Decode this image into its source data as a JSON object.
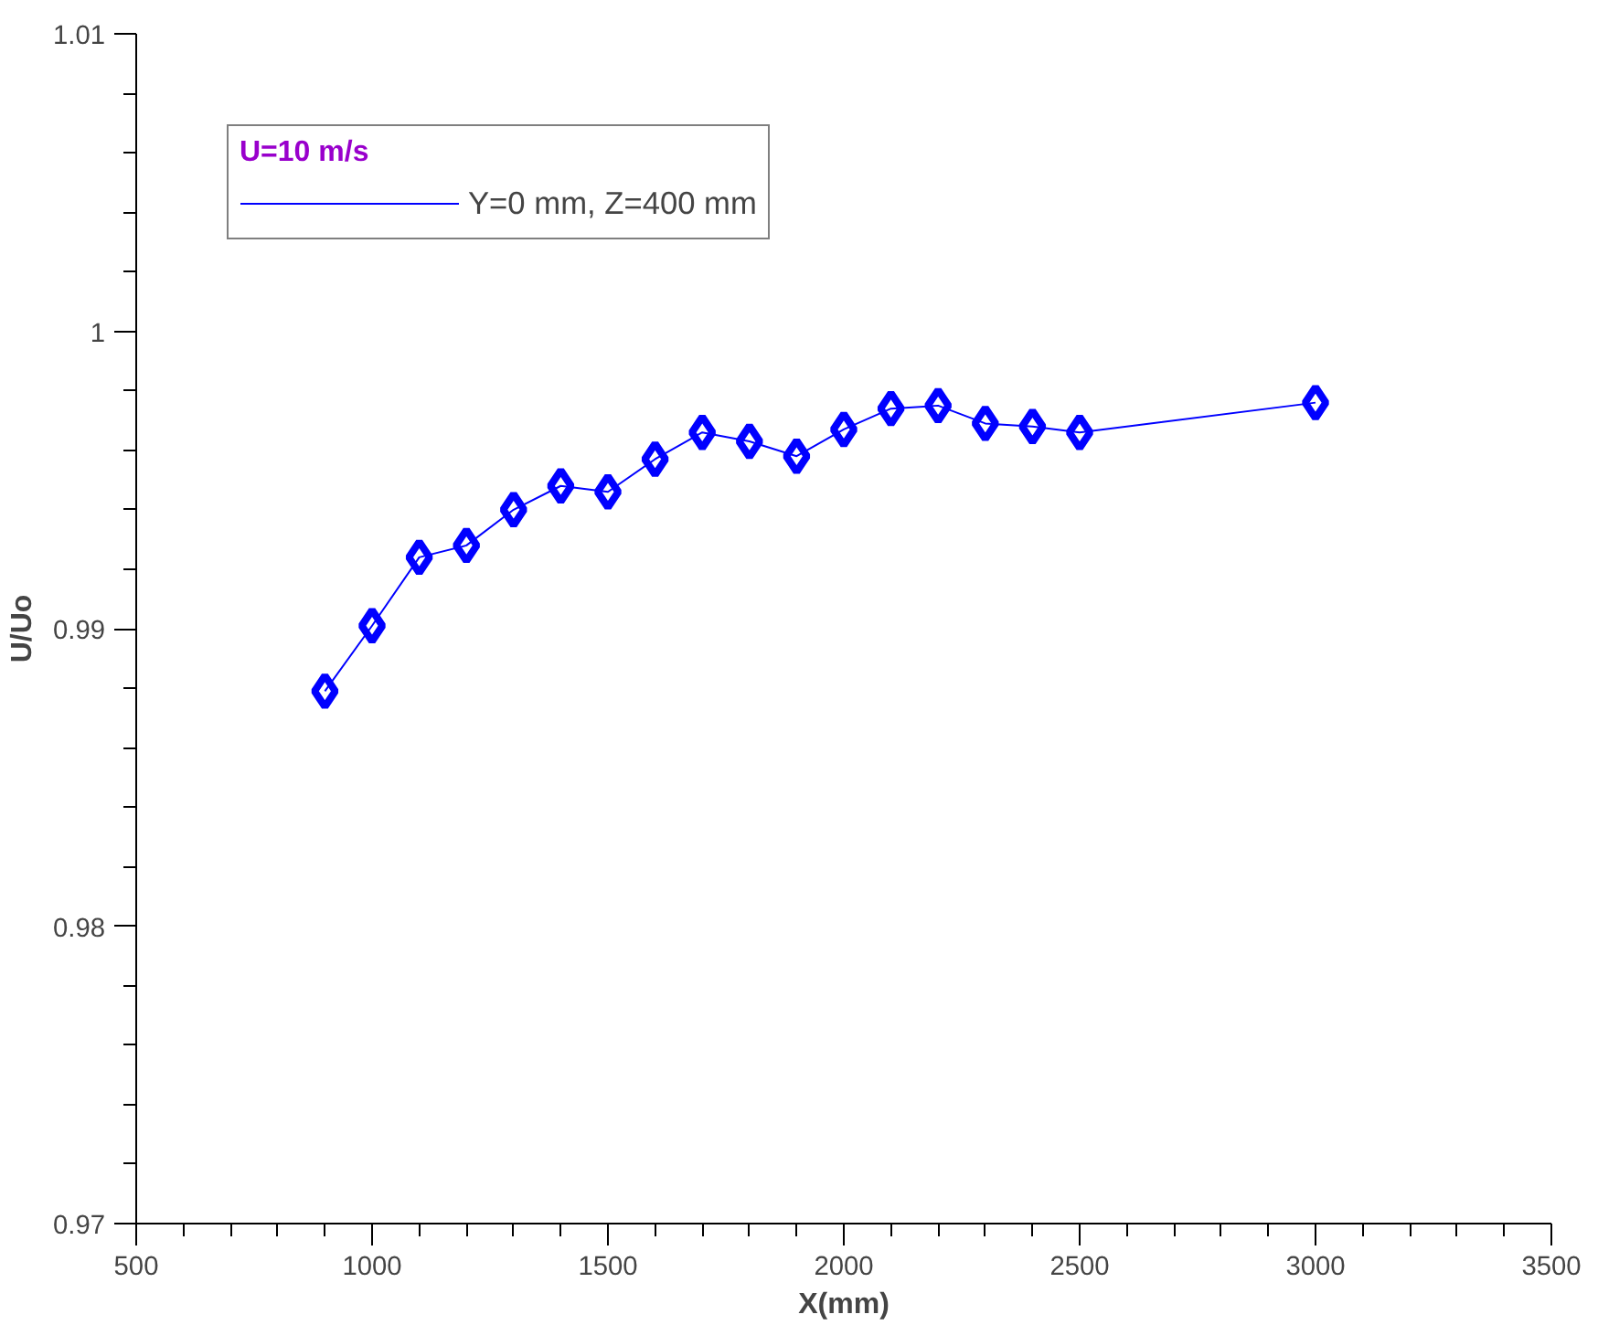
{
  "chart_data": {
    "type": "line",
    "xlabel": "X(mm)",
    "ylabel": "U/Uo",
    "legend_title": "U=10 m/s",
    "x": [
      900,
      1000,
      1100,
      1200,
      1300,
      1400,
      1500,
      1600,
      1700,
      1800,
      1900,
      2000,
      2100,
      2200,
      2300,
      2400,
      2500,
      3000
    ],
    "series": [
      {
        "name": "Y=0 mm, Z=400 mm",
        "color": "#0000ff",
        "values": [
          0.9879,
          0.9901,
          0.9924,
          0.9928,
          0.994,
          0.9948,
          0.9946,
          0.9957,
          0.9966,
          0.9963,
          0.9958,
          0.9967,
          0.9974,
          0.9975,
          0.9969,
          0.9968,
          0.9966,
          0.9976
        ]
      }
    ],
    "xlim": [
      500,
      3500
    ],
    "ylim": [
      0.97,
      1.01
    ],
    "xticks": [
      500,
      1000,
      1500,
      2000,
      2500,
      3000,
      3500
    ],
    "yticks": [
      0.97,
      0.98,
      0.99,
      1,
      1.01
    ],
    "grid": false,
    "legend": "top left",
    "marker": "diamond",
    "line_style": "solid"
  }
}
